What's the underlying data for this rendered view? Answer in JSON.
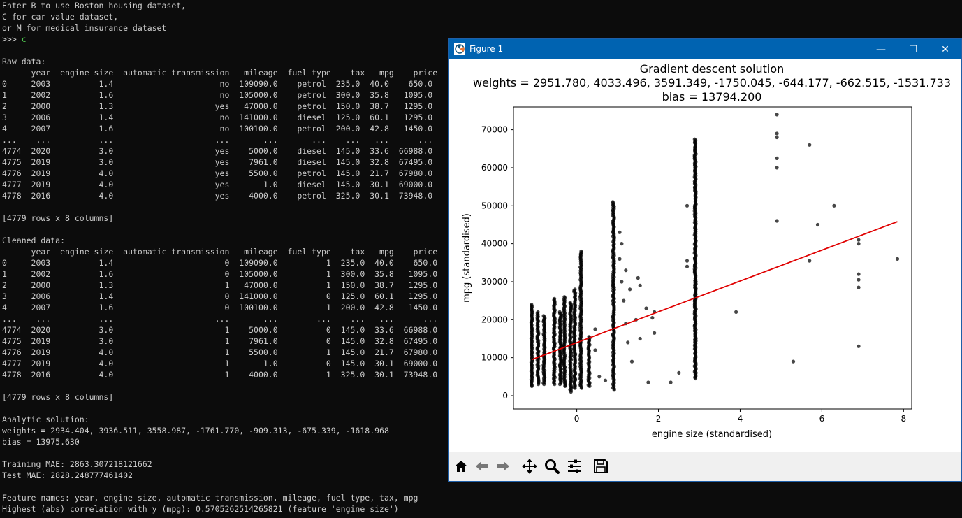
{
  "terminal": {
    "lines": [
      "Enter B to use Boston housing dataset,",
      "C for car value dataset,",
      "or M for medical insurance dataset",
      "__PROMPT__",
      "",
      "Raw data:",
      "      year  engine size  automatic transmission   mileage  fuel type    tax   mpg    price",
      "0     2003          1.4                      no  109090.0    petrol  235.0  40.0    650.0",
      "1     2002          1.6                      no  105000.0    petrol  300.0  35.8   1095.0",
      "2     2000          1.3                     yes   47000.0    petrol  150.0  38.7   1295.0",
      "3     2006          1.4                      no  141000.0    diesel  125.0  60.1   1295.0",
      "4     2007          1.6                      no  100100.0    petrol  200.0  42.8   1450.0",
      "...    ...          ...                     ...       ...       ...    ...   ...      ...",
      "4774  2020          3.0                     yes    5000.0    diesel  145.0  33.6  66988.0",
      "4775  2019          3.0                     yes    7961.0    diesel  145.0  32.8  67495.0",
      "4776  2019          4.0                     yes    5500.0    petrol  145.0  21.7  67980.0",
      "4777  2019          4.0                     yes       1.0    diesel  145.0  30.1  69000.0",
      "4778  2016          4.0                     yes    4000.0    petrol  325.0  30.1  73948.0",
      "",
      "[4779 rows x 8 columns]",
      "",
      "Cleaned data:",
      "      year  engine size  automatic transmission   mileage  fuel type    tax   mpg    price",
      "0     2003          1.4                       0  109090.0          1  235.0  40.0    650.0",
      "1     2002          1.6                       0  105000.0          1  300.0  35.8   1095.0",
      "2     2000          1.3                       1   47000.0          1  150.0  38.7   1295.0",
      "3     2006          1.4                       0  141000.0          0  125.0  60.1   1295.0",
      "4     2007          1.6                       0  100100.0          1  200.0  42.8   1450.0",
      "...    ...          ...                     ...       ...        ...    ...   ...      ...",
      "4774  2020          3.0                       1    5000.0          0  145.0  33.6  66988.0",
      "4775  2019          3.0                       1    7961.0          0  145.0  32.8  67495.0",
      "4776  2019          4.0                       1    5500.0          1  145.0  21.7  67980.0",
      "4777  2019          4.0                       1       1.0          0  145.0  30.1  69000.0",
      "4778  2016          4.0                       1    4000.0          1  325.0  30.1  73948.0",
      "",
      "[4779 rows x 8 columns]",
      "",
      "Analytic solution:",
      "weights = 2934.404, 3936.511, 3558.987, -1761.770, -909.313, -675.339, -1618.968",
      "bias = 13975.630",
      "",
      "Training MAE: 2863.307218121662",
      "Test MAE: 2828.248777461402",
      "",
      "Feature names: year, engine size, automatic transmission, mileage, fuel type, tax, mpg",
      "Highest (abs) correlation with y (mpg): 0.5705262514265821 (feature 'engine size')"
    ],
    "prompt": ">>> ",
    "prompt_input": "c"
  },
  "window": {
    "title": "Figure 1",
    "minimize_glyph": "—",
    "maximize_glyph": "☐",
    "close_glyph": "✕",
    "icon": "matplotlib-icon"
  },
  "toolbar": {
    "buttons": [
      "home-icon",
      "back-arrow-icon",
      "forward-arrow-icon",
      "pan-icon",
      "zoom-icon",
      "subplots-config-icon",
      "save-icon"
    ]
  },
  "chart_data": {
    "type": "scatter",
    "title_lines": [
      "Gradient descent solution",
      "weights = 2951.780, 4033.496, 3591.349, -1750.045, -644.177, -662.515, -1531.733",
      "bias = 13794.200"
    ],
    "xlabel": "engine size (standardised)",
    "ylabel": "mpg (standardised)",
    "xlim": [
      -1.55,
      8.2
    ],
    "ylim": [
      -3500,
      76000
    ],
    "xticks": [
      0,
      2,
      4,
      6,
      8
    ],
    "yticks": [
      0,
      10000,
      20000,
      30000,
      40000,
      50000,
      60000,
      70000
    ],
    "point_color": "#000000",
    "line_color": "#e00000",
    "fit_line": {
      "x": [
        -1.1,
        7.85
      ],
      "y": [
        9500,
        45800
      ]
    },
    "columns": [
      {
        "x": -1.1,
        "ymin": 2500,
        "ymax": 24000
      },
      {
        "x": -0.95,
        "ymin": 3000,
        "ymax": 22000
      },
      {
        "x": -0.8,
        "ymin": 3000,
        "ymax": 21000
      },
      {
        "x": -0.55,
        "ymin": 3000,
        "ymax": 25500
      },
      {
        "x": -0.4,
        "ymin": 3000,
        "ymax": 22000
      },
      {
        "x": -0.3,
        "ymin": 2500,
        "ymax": 26000
      },
      {
        "x": -0.15,
        "ymin": 1000,
        "ymax": 24500
      },
      {
        "x": -0.05,
        "ymin": 2000,
        "ymax": 28000
      },
      {
        "x": 0.1,
        "ymin": 2000,
        "ymax": 38000
      },
      {
        "x": 0.3,
        "ymin": 2500,
        "ymax": 15500
      },
      {
        "x": 0.9,
        "ymin": 1500,
        "ymax": 51000
      },
      {
        "x": 2.9,
        "ymin": 4500,
        "ymax": 67500
      }
    ],
    "points": [
      {
        "x": 0.45,
        "y": 17500
      },
      {
        "x": 0.45,
        "y": 12000
      },
      {
        "x": 0.55,
        "y": 5000
      },
      {
        "x": 0.7,
        "y": 4000
      },
      {
        "x": 1.05,
        "y": 43000
      },
      {
        "x": 1.05,
        "y": 36000
      },
      {
        "x": 1.1,
        "y": 40000
      },
      {
        "x": 1.1,
        "y": 30000
      },
      {
        "x": 1.15,
        "y": 25000
      },
      {
        "x": 1.2,
        "y": 19000
      },
      {
        "x": 1.2,
        "y": 33000
      },
      {
        "x": 1.25,
        "y": 14000
      },
      {
        "x": 1.3,
        "y": 28000
      },
      {
        "x": 1.35,
        "y": 9000
      },
      {
        "x": 1.45,
        "y": 20000
      },
      {
        "x": 1.5,
        "y": 31000
      },
      {
        "x": 1.55,
        "y": 29000
      },
      {
        "x": 1.55,
        "y": 15000
      },
      {
        "x": 1.7,
        "y": 23000
      },
      {
        "x": 1.75,
        "y": 3500
      },
      {
        "x": 1.85,
        "y": 20500
      },
      {
        "x": 1.9,
        "y": 22000
      },
      {
        "x": 1.9,
        "y": 16500
      },
      {
        "x": 2.3,
        "y": 3500
      },
      {
        "x": 2.5,
        "y": 6000
      },
      {
        "x": 2.7,
        "y": 34000
      },
      {
        "x": 2.7,
        "y": 50000
      },
      {
        "x": 2.7,
        "y": 35500
      },
      {
        "x": 3.9,
        "y": 22000
      },
      {
        "x": 4.9,
        "y": 74000
      },
      {
        "x": 4.9,
        "y": 69000
      },
      {
        "x": 4.9,
        "y": 68000
      },
      {
        "x": 4.9,
        "y": 62500
      },
      {
        "x": 4.9,
        "y": 60000
      },
      {
        "x": 4.9,
        "y": 46000
      },
      {
        "x": 5.3,
        "y": 9000
      },
      {
        "x": 5.7,
        "y": 66000
      },
      {
        "x": 5.7,
        "y": 35500
      },
      {
        "x": 5.9,
        "y": 45000
      },
      {
        "x": 6.3,
        "y": 50000
      },
      {
        "x": 6.9,
        "y": 41000
      },
      {
        "x": 6.9,
        "y": 40000
      },
      {
        "x": 6.9,
        "y": 32000
      },
      {
        "x": 6.9,
        "y": 30500
      },
      {
        "x": 6.9,
        "y": 28500
      },
      {
        "x": 6.9,
        "y": 13000
      },
      {
        "x": 7.85,
        "y": 36000
      }
    ]
  }
}
